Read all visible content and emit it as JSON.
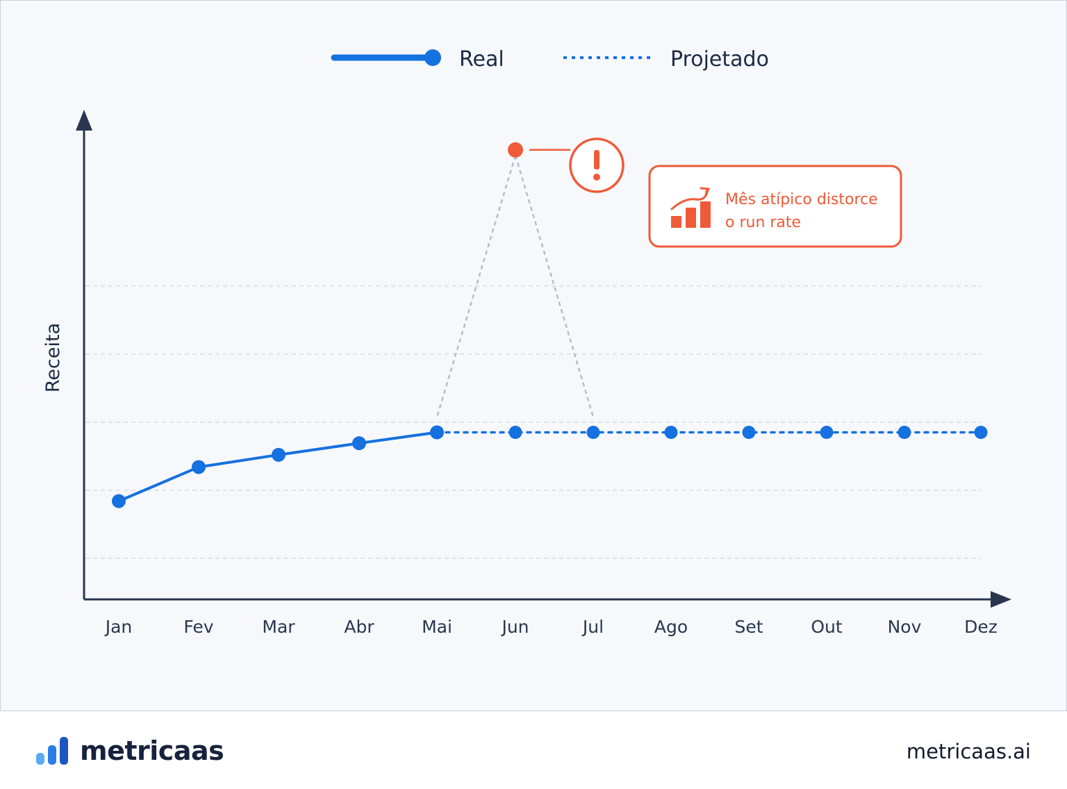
{
  "chart_data": {
    "type": "line",
    "title": "",
    "xlabel": "",
    "ylabel": "Receita",
    "categories": [
      "Jan",
      "Fev",
      "Mar",
      "Abr",
      "Mai",
      "Jun",
      "Jul",
      "Ago",
      "Set",
      "Out",
      "Nov",
      "Dez"
    ],
    "ylim": [
      0,
      8
    ],
    "grid": true,
    "legend_position": "top-center",
    "series": [
      {
        "name": "Real",
        "style": "solid",
        "color": "#1570e0",
        "values": [
          1.24,
          1.74,
          1.92,
          2.09,
          2.25,
          null,
          null,
          null,
          null,
          null,
          null,
          null
        ]
      },
      {
        "name": "Projetado",
        "style": "dotted",
        "color": "#1570e0",
        "values": [
          null,
          null,
          null,
          null,
          2.25,
          2.25,
          2.25,
          2.25,
          2.25,
          2.25,
          2.25,
          2.25
        ]
      }
    ],
    "outlier": {
      "category": "Jun",
      "value": 6.4,
      "color": "#ef5a38"
    },
    "annotation": {
      "lines": [
        "Mês atípico distorce",
        "o run rate"
      ],
      "color": "#ef5a38"
    }
  },
  "footer": {
    "brand": "metricaas",
    "url": "metricaas.ai",
    "logo_colors": [
      "#5aaaf6",
      "#2b7de6",
      "#1b57c4"
    ]
  }
}
